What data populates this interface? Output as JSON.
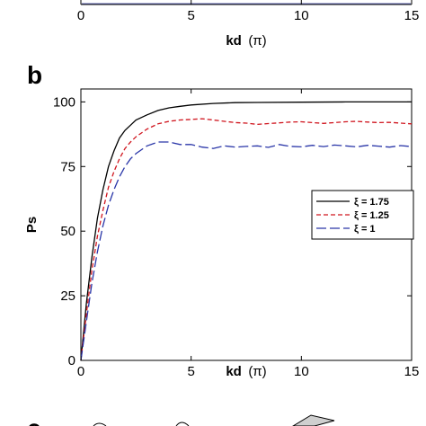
{
  "panels": {
    "a": {
      "x_ticks": [
        "0",
        "5",
        "10",
        "15"
      ],
      "xlabel": "kd",
      "xlabel_unit": "(π)"
    },
    "b": {
      "letter": "b"
    },
    "c": {
      "letter": "c"
    }
  },
  "chart_data": {
    "type": "line",
    "title": "",
    "xlabel": "kd",
    "xlabel_unit": "(π)",
    "ylabel": "Ps",
    "xlim": [
      0,
      15
    ],
    "ylim": [
      0,
      105
    ],
    "x_ticks": [
      "0",
      "5",
      "10",
      "15"
    ],
    "y_ticks": [
      "0",
      "25",
      "50",
      "75",
      "100"
    ],
    "grid": false,
    "legend_position": "right",
    "series": [
      {
        "name": "ξ = 1.75",
        "color": "#000000",
        "dash": "solid",
        "x": [
          0,
          0.25,
          0.5,
          0.75,
          1,
          1.25,
          1.5,
          1.75,
          2,
          2.25,
          2.5,
          3,
          3.5,
          4,
          4.5,
          5,
          6,
          7,
          8,
          10,
          12,
          15
        ],
        "y": [
          0,
          22,
          40,
          55,
          66,
          75,
          81,
          86,
          89,
          91,
          93,
          95,
          96.7,
          97.7,
          98.3,
          98.8,
          99.4,
          99.7,
          99.8,
          99.9,
          100,
          100
        ]
      },
      {
        "name": "ξ = 1.25",
        "color": "#d0161f",
        "dash": "short-dash",
        "x": [
          0,
          0.25,
          0.5,
          0.75,
          1,
          1.25,
          1.5,
          1.75,
          2,
          2.25,
          2.5,
          3,
          3.5,
          4,
          4.5,
          5,
          5.5,
          6,
          6.5,
          7,
          7.5,
          8,
          8.5,
          9,
          9.5,
          10,
          10.5,
          11,
          11.5,
          12,
          12.5,
          13,
          13.5,
          14,
          14.5,
          15
        ],
        "y": [
          0,
          18,
          35,
          48,
          58,
          67,
          73,
          78,
          82,
          84.5,
          86.5,
          89.5,
          91.5,
          92.5,
          93,
          93.2,
          93.5,
          93,
          92.5,
          92,
          91.8,
          91.3,
          91.6,
          91.9,
          92.2,
          92.3,
          92,
          91.7,
          92,
          92.3,
          92.5,
          92.2,
          92,
          92.1,
          91.8,
          91.5
        ]
      },
      {
        "name": "ξ = 1",
        "color": "#2a36a8",
        "dash": "long-dash",
        "x": [
          0,
          0.25,
          0.5,
          0.75,
          1,
          1.25,
          1.5,
          1.75,
          2,
          2.25,
          2.5,
          3,
          3.5,
          4,
          4.5,
          5,
          5.5,
          6,
          6.5,
          7,
          7.5,
          8,
          8.5,
          9,
          9.5,
          10,
          10.5,
          11,
          11.5,
          12,
          12.5,
          13,
          13.5,
          14,
          14.5,
          15
        ],
        "y": [
          0,
          15,
          30,
          42,
          52,
          60,
          66,
          71,
          75,
          78,
          80,
          83,
          84.5,
          84.5,
          83.5,
          83.5,
          82.5,
          82,
          83,
          82.5,
          82.8,
          83,
          82.4,
          83.5,
          82.8,
          82.6,
          83.2,
          82.7,
          83.3,
          83,
          82.6,
          83.2,
          82.9,
          82.5,
          83.1,
          82.7
        ]
      }
    ]
  }
}
